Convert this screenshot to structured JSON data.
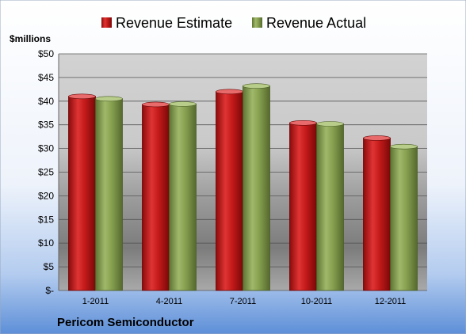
{
  "chart_data": {
    "type": "bar",
    "title": "",
    "company": "Pericom Semiconductor",
    "ylabel": "$millions",
    "xlabel": "",
    "categories": [
      "1-2011",
      "4-2011",
      "7-2011",
      "10-2011",
      "12-2011"
    ],
    "series": [
      {
        "name": "Revenue Estimate",
        "color": "#cc1f1f",
        "values": [
          41.0,
          39.3,
          42.0,
          35.4,
          32.2
        ]
      },
      {
        "name": "Revenue Actual",
        "color": "#8aa356",
        "values": [
          40.5,
          39.4,
          43.2,
          35.2,
          30.4
        ]
      }
    ],
    "ylim": [
      0,
      50
    ],
    "yticks": [
      {
        "value": 0,
        "label": "$-"
      },
      {
        "value": 5,
        "label": "$5"
      },
      {
        "value": 10,
        "label": "$10"
      },
      {
        "value": 15,
        "label": "$15"
      },
      {
        "value": 20,
        "label": "$20"
      },
      {
        "value": 25,
        "label": "$25"
      },
      {
        "value": 30,
        "label": "$30"
      },
      {
        "value": 35,
        "label": "$35"
      },
      {
        "value": 40,
        "label": "$40"
      },
      {
        "value": 45,
        "label": "$45"
      },
      {
        "value": 50,
        "label": "$50"
      }
    ],
    "grid": true,
    "legend_position": "top"
  }
}
